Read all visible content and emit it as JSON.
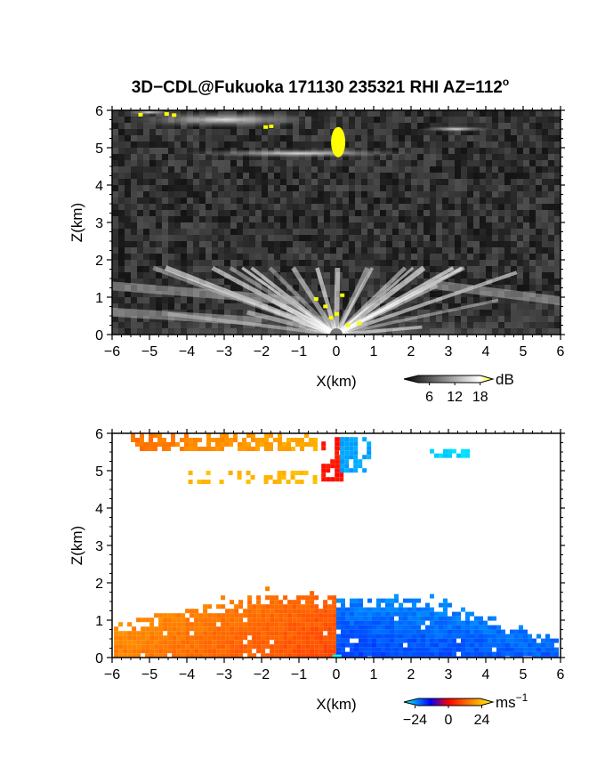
{
  "title": "3D−CDL@Fukuoka 171130 235321 RHI AZ=112",
  "title_sup": "o",
  "chart_data": [
    {
      "type": "heatmap",
      "name": "reflectivity",
      "xlabel": "X(km)",
      "ylabel": "Z(km)",
      "xlim": [
        -6,
        6
      ],
      "ylim": [
        0,
        6
      ],
      "xticks": [
        "−6",
        "−5",
        "−4",
        "−3",
        "−2",
        "−1",
        "0",
        "1",
        "2",
        "3",
        "4",
        "5",
        "6"
      ],
      "yticks": [
        "0",
        "1",
        "2",
        "3",
        "4",
        "5",
        "6"
      ],
      "colorbar": {
        "unit": "dB",
        "ticks": [
          "6",
          "12",
          "18"
        ],
        "tick_values": [
          6,
          12,
          18
        ],
        "range": [
          0,
          21
        ],
        "colors": [
          "#000000",
          "#ffffff",
          "#ffff00"
        ]
      },
      "features": [
        {
          "desc": "near-ground clutter fan",
          "x": [
            -6,
            6
          ],
          "z": [
            0,
            1.6
          ]
        },
        {
          "desc": "cloud layer",
          "x": [
            -5,
            -0.5
          ],
          "z": [
            5.5,
            6
          ]
        },
        {
          "desc": "cloud layer",
          "x": [
            -4.5,
            2.5
          ],
          "z": [
            4.7,
            5.0
          ]
        },
        {
          "desc": "strong echo",
          "x": [
            0,
            0
          ],
          "z": [
            4.9,
            5.4
          ]
        }
      ]
    },
    {
      "type": "heatmap",
      "name": "doppler-velocity",
      "xlabel": "X(km)",
      "ylabel": "Z(km)",
      "xlim": [
        -6,
        6
      ],
      "ylim": [
        0,
        6
      ],
      "xticks": [
        "−6",
        "−5",
        "−4",
        "−3",
        "−2",
        "−1",
        "0",
        "1",
        "2",
        "3",
        "4",
        "5",
        "6"
      ],
      "yticks": [
        "0",
        "1",
        "2",
        "3",
        "4",
        "5",
        "6"
      ],
      "colorbar": {
        "unit": "ms",
        "unit_sup": "−1",
        "ticks": [
          "−24",
          "0",
          "24"
        ],
        "tick_values": [
          -24,
          0,
          24
        ],
        "range": [
          -32,
          32
        ],
        "colors": [
          "#00ffff",
          "#0000ff",
          "#ff0000",
          "#ffff00"
        ]
      },
      "features": [
        {
          "desc": "boundary layer, receding",
          "x": [
            -5.9,
            0
          ],
          "z": [
            0,
            1.8
          ],
          "velocity": 12
        },
        {
          "desc": "boundary layer, approaching",
          "x": [
            0,
            6
          ],
          "z": [
            0,
            1.6
          ],
          "velocity": -18
        },
        {
          "desc": "upper layer",
          "x": [
            -5.5,
            -0.6
          ],
          "z": [
            5.5,
            6
          ],
          "velocity": 22
        },
        {
          "desc": "upper layer",
          "x": [
            -4.2,
            -0.6
          ],
          "z": [
            4.7,
            5.0
          ],
          "velocity": 20
        },
        {
          "desc": "core",
          "x": [
            -0.4,
            0.1
          ],
          "z": [
            4.8,
            5.9
          ],
          "velocity": 6
        },
        {
          "desc": "core",
          "x": [
            0.1,
            0.9
          ],
          "z": [
            5.0,
            5.9
          ],
          "velocity": -24
        },
        {
          "desc": "patch",
          "x": [
            2.5,
            3.5
          ],
          "z": [
            5.4,
            5.6
          ],
          "velocity": -28
        }
      ]
    }
  ]
}
